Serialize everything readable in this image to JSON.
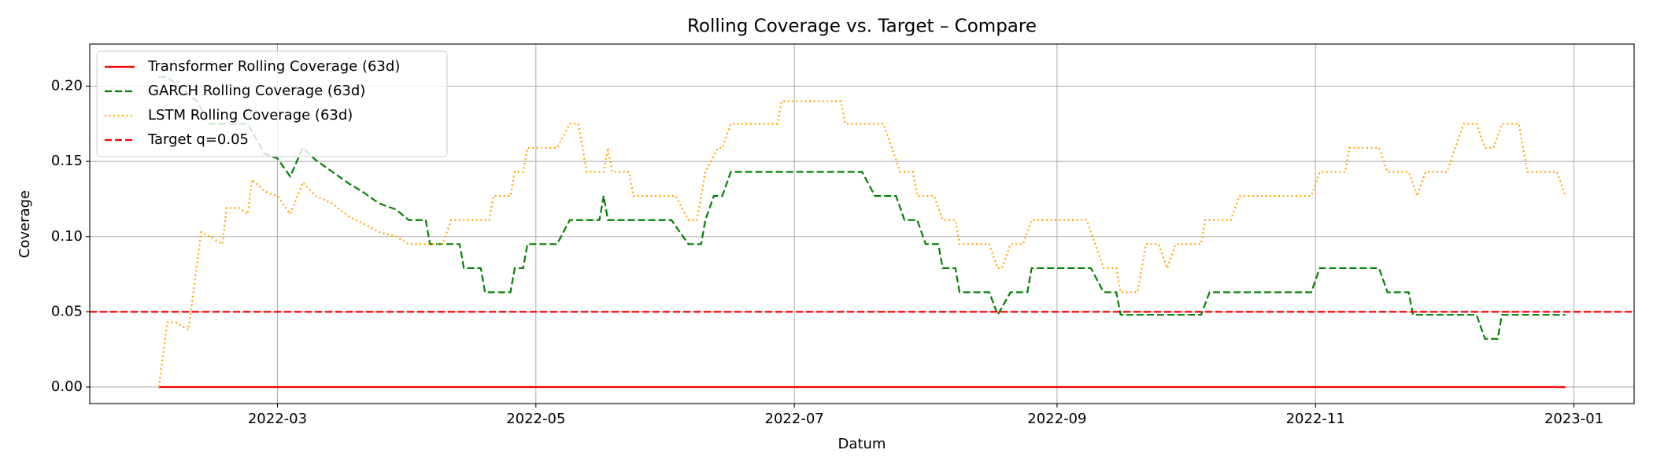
{
  "chart_data": {
    "type": "line",
    "title": "Rolling Coverage vs. Target – Compare",
    "xlabel": "Datum",
    "ylabel": "Coverage",
    "xlim": [
      14.7,
      379.2
    ],
    "xticks": [
      {
        "value": 59,
        "label": "2022-03"
      },
      {
        "value": 120,
        "label": "2022-05"
      },
      {
        "value": 181,
        "label": "2022-07"
      },
      {
        "value": 243,
        "label": "2022-09"
      },
      {
        "value": 304,
        "label": "2022-11"
      },
      {
        "value": 365,
        "label": "2023-01"
      }
    ],
    "ylim": [
      -0.011,
      0.228
    ],
    "yticks": [
      {
        "value": 0,
        "label": "0.00"
      },
      0.05,
      {
        "value": 0.1,
        "label": "0.10"
      },
      0.15,
      {
        "value": 0.2,
        "label": "0.20"
      }
    ],
    "grid": true,
    "legend": "upper left",
    "series": [
      {
        "name": "Transformer Rolling Coverage (63d)",
        "color": "#ff0000",
        "linestyle": "solid",
        "x": [
          31,
          363
        ],
        "values": [
          0,
          0
        ]
      },
      {
        "name": "GARCH Rolling Coverage (63d)",
        "color": "#008000",
        "linestyle": "dashed",
        "x": [
          31,
          33,
          40,
          43,
          47,
          52,
          56,
          59,
          62,
          65,
          68,
          72,
          76,
          79,
          83,
          87,
          90,
          94,
          95,
          102,
          103,
          107,
          108,
          114,
          115,
          117,
          118,
          125,
          128,
          135,
          136,
          137,
          138,
          152,
          156,
          159,
          160,
          162,
          164,
          166,
          197,
          200,
          205,
          207,
          210,
          212,
          215,
          216,
          219,
          220,
          227,
          229,
          232,
          236,
          237,
          251,
          254,
          257,
          258,
          277,
          279,
          303,
          305,
          319,
          321,
          326,
          327,
          342,
          344,
          347,
          348,
          363
        ],
        "values": [
          0.206,
          0.206,
          0.19,
          0.175,
          0.175,
          0.175,
          0.155,
          0.152,
          0.14,
          0.159,
          0.151,
          0.143,
          0.135,
          0.13,
          0.122,
          0.118,
          0.111,
          0.111,
          0.095,
          0.095,
          0.079,
          0.079,
          0.063,
          0.063,
          0.079,
          0.079,
          0.095,
          0.095,
          0.111,
          0.111,
          0.127,
          0.111,
          0.111,
          0.111,
          0.095,
          0.095,
          0.111,
          0.127,
          0.127,
          0.143,
          0.143,
          0.127,
          0.127,
          0.111,
          0.111,
          0.095,
          0.095,
          0.079,
          0.079,
          0.063,
          0.063,
          0.048,
          0.063,
          0.063,
          0.079,
          0.079,
          0.063,
          0.063,
          0.048,
          0.048,
          0.063,
          0.063,
          0.079,
          0.079,
          0.063,
          0.063,
          0.048,
          0.048,
          0.032,
          0.032,
          0.048,
          0.048
        ]
      },
      {
        "name": "LSTM Rolling Coverage (63d)",
        "color": "#ffa500",
        "linestyle": "dotted",
        "x": [
          31,
          33,
          35,
          38,
          41,
          43,
          46,
          47,
          50,
          52,
          53,
          56,
          59,
          62,
          65,
          68,
          72,
          76,
          79,
          83,
          87,
          90,
          98,
          100,
          109,
          110,
          114,
          115,
          117,
          118,
          125,
          128,
          130,
          132,
          136,
          137,
          138,
          142,
          143,
          153,
          156,
          158,
          160,
          163,
          164,
          166,
          177,
          178,
          192,
          193,
          202,
          206,
          209,
          210,
          214,
          216,
          219,
          220,
          227,
          229,
          230,
          232,
          235,
          237,
          250,
          252,
          254,
          257,
          258,
          262,
          264,
          267,
          269,
          271,
          277,
          278,
          284,
          286,
          303,
          305,
          311,
          312,
          319,
          321,
          326,
          328,
          330,
          335,
          337,
          339,
          342,
          344,
          346,
          348,
          352,
          354,
          361,
          363
        ],
        "values": [
          0,
          0.043,
          0.043,
          0.038,
          0.103,
          0.1,
          0.095,
          0.119,
          0.119,
          0.115,
          0.138,
          0.13,
          0.127,
          0.115,
          0.136,
          0.127,
          0.122,
          0.113,
          0.109,
          0.103,
          0.1,
          0.095,
          0.095,
          0.111,
          0.111,
          0.127,
          0.127,
          0.143,
          0.143,
          0.159,
          0.159,
          0.175,
          0.175,
          0.143,
          0.143,
          0.159,
          0.143,
          0.143,
          0.127,
          0.127,
          0.111,
          0.111,
          0.143,
          0.159,
          0.159,
          0.175,
          0.175,
          0.19,
          0.19,
          0.175,
          0.175,
          0.143,
          0.143,
          0.127,
          0.127,
          0.111,
          0.111,
          0.095,
          0.095,
          0.079,
          0.079,
          0.095,
          0.095,
          0.111,
          0.111,
          0.095,
          0.079,
          0.079,
          0.063,
          0.063,
          0.095,
          0.095,
          0.079,
          0.095,
          0.095,
          0.111,
          0.111,
          0.127,
          0.127,
          0.143,
          0.143,
          0.159,
          0.159,
          0.143,
          0.143,
          0.127,
          0.143,
          0.143,
          0.159,
          0.175,
          0.175,
          0.159,
          0.159,
          0.175,
          0.175,
          0.143,
          0.143,
          0.127
        ]
      }
    ],
    "hlines": [
      {
        "name": "Target q=0.05",
        "value": 0.05,
        "color": "#ff0000",
        "linestyle": "dashed"
      }
    ]
  }
}
